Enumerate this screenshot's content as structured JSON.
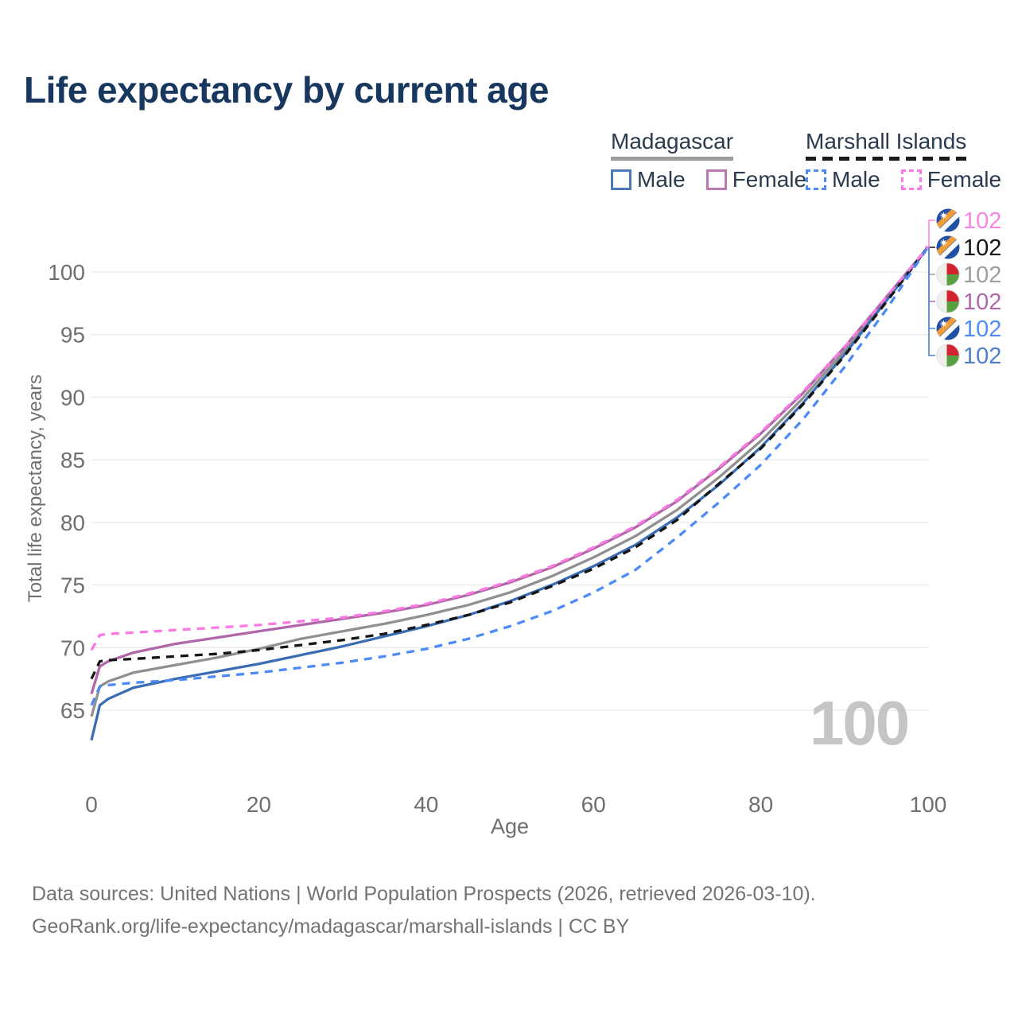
{
  "title": "Life expectancy by current age",
  "legend": {
    "groups": [
      {
        "name": "Madagascar",
        "line_style": "solid",
        "underline_color": "#9b9b9b",
        "items": [
          {
            "label": "Male",
            "color": "#4a79b8",
            "box_style": "solid"
          },
          {
            "label": "Female",
            "color": "#b879b1",
            "box_style": "solid"
          }
        ]
      },
      {
        "name": "Marshall Islands",
        "line_style": "dashed",
        "underline_color": "#1a1a1a",
        "items": [
          {
            "label": "Male",
            "color": "#4c8bf7",
            "box_style": "dashed"
          },
          {
            "label": "Female",
            "color": "#fb79e3",
            "box_style": "dashed"
          }
        ]
      }
    ]
  },
  "watermark": {
    "value": "100"
  },
  "footer": {
    "line1": "Data sources: United Nations | World Population Prospects (2026, retrieved 2026-03-10).",
    "line2": "GeoRank.org/life-expectancy/madagascar/marshall-islands | CC BY"
  },
  "chart_data": {
    "type": "line",
    "title": "Life expectancy by current age",
    "xlabel": "Age",
    "ylabel": "Total life expectancy, years",
    "xlim": [
      0,
      100
    ],
    "ylim": [
      62,
      103
    ],
    "x_ticks": [
      0,
      20,
      40,
      60,
      80,
      100
    ],
    "y_ticks": [
      65,
      70,
      75,
      80,
      85,
      90,
      95,
      100
    ],
    "grid": "horizontal",
    "legend_position": "top-right",
    "ages": [
      0,
      1,
      2,
      5,
      10,
      15,
      20,
      25,
      30,
      35,
      40,
      45,
      50,
      55,
      60,
      65,
      70,
      75,
      80,
      85,
      90,
      95,
      100
    ],
    "series": [
      {
        "name": "Madagascar Both sexes",
        "country": "Madagascar",
        "sex": "Both",
        "color": "#909090",
        "label_color": "#9e9e9e",
        "dashed": false,
        "flag": "madagascar",
        "end_label": "102",
        "label_row": 2,
        "values": [
          64.5,
          66.9,
          67.3,
          68.0,
          68.6,
          69.2,
          69.9,
          70.7,
          71.3,
          71.9,
          72.6,
          73.4,
          74.4,
          75.7,
          77.2,
          78.9,
          81.0,
          83.6,
          86.5,
          89.9,
          93.7,
          97.8,
          102
        ]
      },
      {
        "name": "Madagascar Female",
        "country": "Madagascar",
        "sex": "Female",
        "color": "#b166a9",
        "label_color": "#b068a9",
        "dashed": false,
        "flag": "madagascar",
        "end_label": "102",
        "label_row": 3,
        "values": [
          66.3,
          68.5,
          68.9,
          69.6,
          70.3,
          70.8,
          71.3,
          71.8,
          72.3,
          72.8,
          73.4,
          74.2,
          75.2,
          76.4,
          77.9,
          79.6,
          81.7,
          84.3,
          87.1,
          90.3,
          94.0,
          98.0,
          102
        ]
      },
      {
        "name": "Madagascar Male",
        "country": "Madagascar",
        "sex": "Male",
        "color": "#3a6db4",
        "label_color": "#4e7ecb",
        "dashed": false,
        "flag": "madagascar",
        "end_label": "102",
        "label_row": 5,
        "values": [
          62.6,
          65.4,
          65.9,
          66.8,
          67.5,
          68.1,
          68.7,
          69.4,
          70.1,
          70.9,
          71.7,
          72.6,
          73.7,
          75.0,
          76.5,
          78.2,
          80.4,
          83.0,
          86.0,
          89.5,
          93.4,
          97.7,
          102
        ]
      },
      {
        "name": "Marshall Islands Both sexes",
        "country": "Marshall Islands",
        "sex": "Both",
        "color": "#141414",
        "label_color": "#141414",
        "dashed": true,
        "flag": "marshall",
        "end_label": "102",
        "label_row": 1,
        "values": [
          67.5,
          68.9,
          69.0,
          69.1,
          69.3,
          69.5,
          69.8,
          70.2,
          70.6,
          71.1,
          71.8,
          72.6,
          73.6,
          74.9,
          76.3,
          78.0,
          80.2,
          83.1,
          85.9,
          89.4,
          93.3,
          97.6,
          102
        ]
      },
      {
        "name": "Marshall Islands Male",
        "country": "Marshall Islands",
        "sex": "Male",
        "color": "#4c8bf7",
        "label_color": "#4f8cf7",
        "dashed": true,
        "flag": "marshall",
        "end_label": "102",
        "label_row": 4,
        "values": [
          65.4,
          66.9,
          67.0,
          67.2,
          67.4,
          67.7,
          68.0,
          68.4,
          68.8,
          69.3,
          69.9,
          70.7,
          71.7,
          72.9,
          74.4,
          76.2,
          78.8,
          81.6,
          84.6,
          88.2,
          92.4,
          97.0,
          102
        ]
      },
      {
        "name": "Marshall Islands Female",
        "country": "Marshall Islands",
        "sex": "Female",
        "color": "#fb79e3",
        "label_color": "#fb85e6",
        "dashed": true,
        "flag": "marshall",
        "end_label": "102",
        "label_row": 0,
        "values": [
          69.8,
          71.0,
          71.1,
          71.2,
          71.4,
          71.6,
          71.8,
          72.1,
          72.4,
          72.9,
          73.5,
          74.3,
          75.3,
          76.5,
          78.0,
          79.7,
          81.8,
          84.4,
          87.2,
          90.4,
          94.0,
          98.0,
          102
        ]
      }
    ]
  }
}
